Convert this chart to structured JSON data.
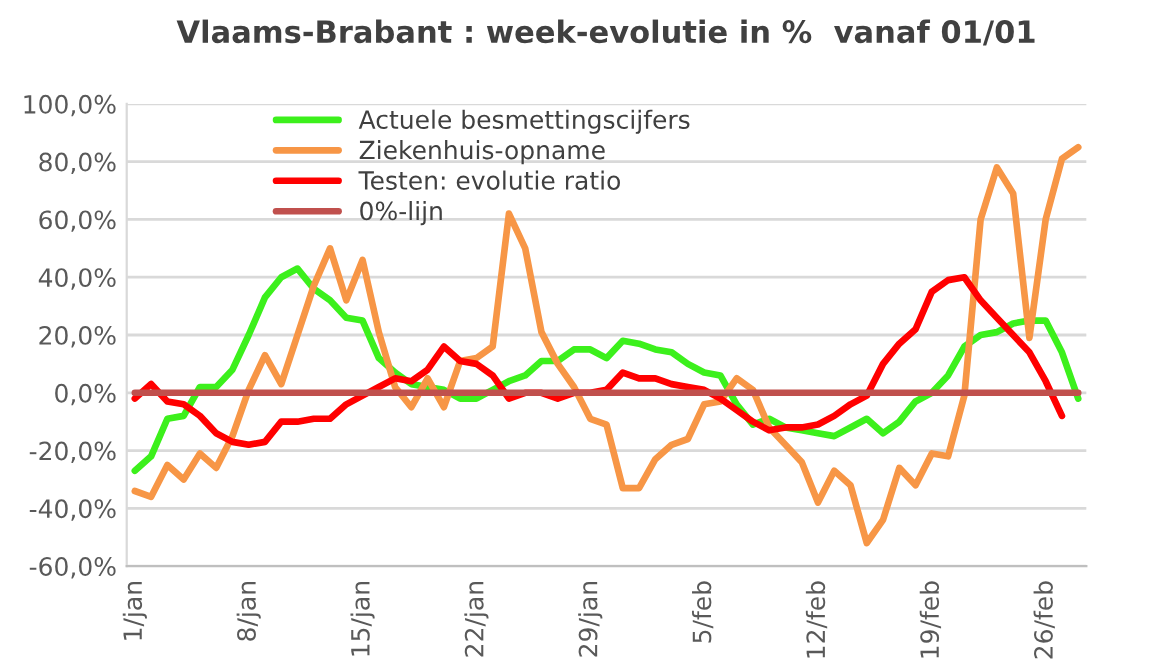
{
  "chart_data": {
    "type": "line",
    "title": "Vlaams-Brabant : week-evolutie in %  vanaf 01/01",
    "categories": [
      "1/jan",
      null,
      null,
      null,
      null,
      null,
      null,
      "8/jan",
      null,
      null,
      null,
      null,
      null,
      null,
      "15/jan",
      null,
      null,
      null,
      null,
      null,
      null,
      "22/jan",
      null,
      null,
      null,
      null,
      null,
      null,
      "29/jan",
      null,
      null,
      null,
      null,
      null,
      null,
      "5/feb",
      null,
      null,
      null,
      null,
      null,
      null,
      "12/feb",
      null,
      null,
      null,
      null,
      null,
      null,
      "19/feb",
      null,
      null,
      null,
      null,
      null,
      null,
      "26/feb",
      null,
      null
    ],
    "series": [
      {
        "name": "Actuele besmettingscijfers",
        "color": "#3cf01c",
        "values": [
          -27,
          -22,
          -9,
          -8,
          2,
          2,
          8,
          20,
          33,
          40,
          43,
          36,
          32,
          26,
          25,
          12,
          7,
          3,
          2,
          1,
          -2,
          -2,
          1,
          4,
          6,
          11,
          11,
          15,
          15,
          12,
          18,
          17,
          15,
          14,
          10,
          7,
          6,
          -4,
          -11,
          -9,
          -12,
          -13,
          -14,
          -15,
          -12,
          -9,
          -14,
          -10,
          -3,
          0,
          6,
          16,
          20,
          21,
          24,
          25,
          25,
          14,
          -2
        ]
      },
      {
        "name": "Ziekenhuis-opname",
        "color": "#f79646",
        "values": [
          -34,
          -36,
          -25,
          -30,
          -21,
          -26,
          -15,
          1,
          13,
          3,
          20,
          37,
          50,
          32,
          46,
          21,
          2,
          -5,
          5,
          -5,
          11,
          12,
          16,
          62,
          50,
          21,
          10,
          2,
          -9,
          -11,
          -33,
          -33,
          -23,
          -18,
          -16,
          -4,
          -3,
          5,
          1,
          -12,
          -18,
          -24,
          -38,
          -27,
          -32,
          -52,
          -44,
          -26,
          -32,
          -21,
          -22,
          -1,
          60,
          78,
          69,
          19,
          60,
          81,
          85
        ]
      },
      {
        "name": "Testen: evolutie ratio",
        "color": "#ff0000",
        "values": [
          -2,
          3,
          -3,
          -4,
          -8,
          -14,
          -17,
          -18,
          -17,
          -10,
          -10,
          -9,
          -9,
          -4,
          -1,
          2,
          5,
          4,
          8,
          16,
          11,
          10,
          6,
          -2,
          0,
          0,
          -2,
          0,
          0,
          1,
          7,
          5,
          5,
          3,
          2,
          1,
          -2,
          -6,
          -10,
          -13,
          -12,
          -12,
          -11,
          -8,
          -4,
          -1,
          10,
          17,
          22,
          35,
          39,
          40,
          32,
          26,
          20,
          14,
          4,
          -8,
          null
        ]
      },
      {
        "name": "0%-lijn",
        "color": "#c0504d",
        "values": [
          0,
          0,
          0,
          0,
          0,
          0,
          0,
          0,
          0,
          0,
          0,
          0,
          0,
          0,
          0,
          0,
          0,
          0,
          0,
          0,
          0,
          0,
          0,
          0,
          0,
          0,
          0,
          0,
          0,
          0,
          0,
          0,
          0,
          0,
          0,
          0,
          0,
          0,
          0,
          0,
          0,
          0,
          0,
          0,
          0,
          0,
          0,
          0,
          0,
          0,
          0,
          0,
          0,
          0,
          0,
          0,
          0,
          0,
          0
        ]
      }
    ],
    "ylim": [
      -60,
      100
    ],
    "yticks": [
      {
        "value": -60,
        "label": "-60,0%"
      },
      {
        "value": -40,
        "label": "-40,0%"
      },
      {
        "value": -20,
        "label": "-20,0%"
      },
      {
        "value": 0,
        "label": "0,0%"
      },
      {
        "value": 20,
        "label": "20,0%"
      },
      {
        "value": 40,
        "label": "40,0%"
      },
      {
        "value": 60,
        "label": "60,0%"
      },
      {
        "value": 80,
        "label": "80,0%"
      },
      {
        "value": 100,
        "label": "100,0%"
      }
    ],
    "grid": "y",
    "legend": "top",
    "marker": "none",
    "line_style": "solid"
  }
}
